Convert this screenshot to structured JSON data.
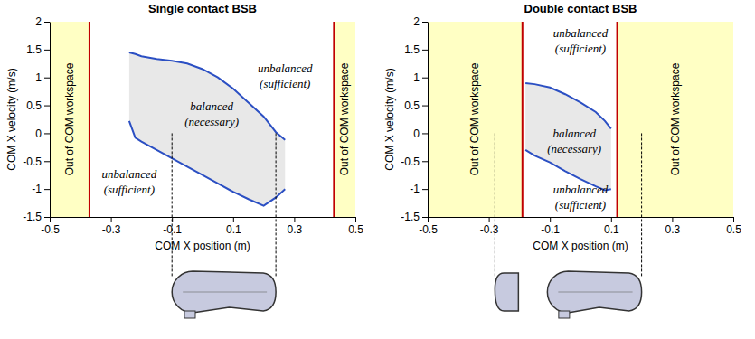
{
  "chart_data": [
    {
      "type": "line",
      "title": "Single contact BSB",
      "x_label": "COM X position (m)",
      "y_label": "COM X velocity (m/s)",
      "xlim": [
        -0.5,
        0.5
      ],
      "ylim": [
        -1.5,
        2
      ],
      "xticks": [
        -0.5,
        -0.3,
        -0.1,
        0.1,
        0.3,
        0.5
      ],
      "yticks": [
        -1.5,
        -1,
        -0.5,
        0,
        0.5,
        1,
        1.5,
        2
      ],
      "x": [
        -0.24,
        -0.22,
        -0.2,
        -0.15,
        -0.1,
        -0.05,
        0,
        0.05,
        0.1,
        0.15,
        0.2,
        0.24,
        0.27
      ],
      "series": [
        {
          "color": "#2b4fc3",
          "values": [
            1.45,
            1.42,
            1.38,
            1.33,
            1.3,
            1.25,
            1.15,
            1.0,
            0.8,
            0.55,
            0.3,
            0.02,
            -0.12
          ]
        },
        {
          "color": "#2b4fc3",
          "values": [
            0.22,
            -0.08,
            -0.15,
            -0.3,
            -0.45,
            -0.6,
            -0.75,
            -0.9,
            -1.05,
            -1.18,
            -1.3,
            -1.15,
            -1.0
          ]
        }
      ],
      "workspace_limits": [
        -0.37,
        0.43
      ],
      "support_edges": [
        -0.1,
        0.24
      ],
      "region_label": "Out of COM workspace",
      "annotations": [
        {
          "text": "unbalanced",
          "subtext": "(sufficient)"
        },
        {
          "text": "balanced",
          "subtext": "(necessary)"
        },
        {
          "text": "unbalanced",
          "subtext": "(sufficient)"
        }
      ]
    },
    {
      "type": "line",
      "title": "Double contact BSB",
      "x_label": "COM X position (m)",
      "y_label": "COM X velocity (m/s)",
      "xlim": [
        -0.5,
        0.5
      ],
      "ylim": [
        -1.5,
        2
      ],
      "xticks": [
        -0.5,
        -0.3,
        -0.1,
        0.1,
        0.3,
        0.5
      ],
      "yticks": [
        -1.5,
        -1,
        -0.5,
        0,
        0.5,
        1,
        1.5,
        2
      ],
      "x": [
        -0.18,
        -0.15,
        -0.1,
        -0.05,
        0,
        0.05,
        0.08,
        0.1
      ],
      "series": [
        {
          "color": "#2b4fc3",
          "values": [
            0.9,
            0.88,
            0.82,
            0.7,
            0.55,
            0.38,
            0.22,
            0.08
          ]
        },
        {
          "color": "#2b4fc3",
          "values": [
            -0.3,
            -0.4,
            -0.52,
            -0.68,
            -0.82,
            -0.95,
            -1.02,
            -1.0
          ]
        }
      ],
      "workspace_limits": [
        -0.19,
        0.12
      ],
      "support_edges": [
        -0.28,
        0.2
      ],
      "region_label": "Out of COM workspace",
      "annotations": [
        {
          "text": "unbalanced",
          "subtext": "(sufficient)"
        },
        {
          "text": "balanced",
          "subtext": "(necessary)"
        },
        {
          "text": "unbalanced",
          "subtext": "(sufficient)"
        }
      ]
    }
  ]
}
